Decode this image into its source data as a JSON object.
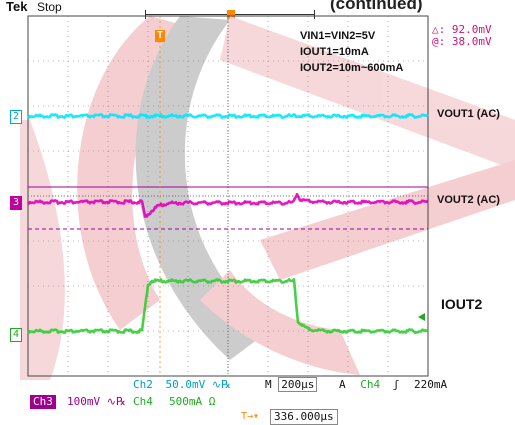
{
  "header": {
    "brand": "Tek",
    "state": "Stop",
    "top_title_fragment": "(continued)",
    "trigger_marker": "T",
    "trigger_color": "#ff8800"
  },
  "cursor": {
    "delta_label": "△:",
    "delta_value": "92.0mV",
    "at_label": "@:",
    "at_value": "38.0mV"
  },
  "annotations": [
    "VIN1=VIN2=5V",
    "IOUT1=10mA",
    "IOUT2=10m~600mA"
  ],
  "channel_markers": {
    "ch2": "2",
    "ch3": "3",
    "ch4": "4"
  },
  "chart_data": {
    "type": "line",
    "title": "",
    "xlabel": "",
    "ylabel": "",
    "x_units": "µs",
    "time_per_div_us": 200,
    "x": [
      0,
      200,
      400,
      600,
      700,
      800,
      1000,
      1200,
      1400,
      1600,
      1800,
      2000
    ],
    "series": [
      {
        "name": "VOUT1 (AC)",
        "color": "#00e5ff",
        "y": [
          0,
          0,
          0,
          0,
          0,
          0,
          0,
          0,
          0,
          0,
          0,
          0
        ]
      },
      {
        "name": "VOUT2 (AC)",
        "color": "#e000c0",
        "x": [
          0,
          570,
          585,
          600,
          650,
          700,
          800,
          1000,
          1200,
          1300,
          1330,
          1345,
          1360,
          1400,
          1500,
          2000
        ],
        "y": [
          0,
          0,
          -92,
          -75,
          -25,
          -8,
          -5,
          -5,
          -5,
          -5,
          0,
          55,
          15,
          5,
          0,
          0
        ]
      },
      {
        "name": "IOUT2",
        "color": "#33cc33",
        "x": [
          0,
          570,
          600,
          620,
          800,
          1000,
          1200,
          1330,
          1350,
          1400,
          1500,
          2000
        ],
        "y": [
          10,
          10,
          560,
          600,
          600,
          600,
          600,
          600,
          120,
          30,
          12,
          10
        ]
      }
    ],
    "grid": true,
    "divisions": {
      "x": 10,
      "y": 8
    }
  },
  "status": {
    "ch2": {
      "label": "Ch2",
      "value": "50.0mV",
      "coupling": "∿℞"
    },
    "ch3": {
      "label": "Ch3",
      "value": "100mV",
      "coupling": "∿℞"
    },
    "ch4": {
      "label": "Ch4",
      "value": "500mA",
      "unit": "Ω"
    },
    "timebase": {
      "label": "M",
      "value": "200µs"
    },
    "trigger": {
      "mode": "A",
      "source": "Ch4",
      "slope": "ʃ",
      "level": "220mA"
    },
    "position": {
      "marker": "T→▾",
      "value": "336.000µs"
    }
  }
}
